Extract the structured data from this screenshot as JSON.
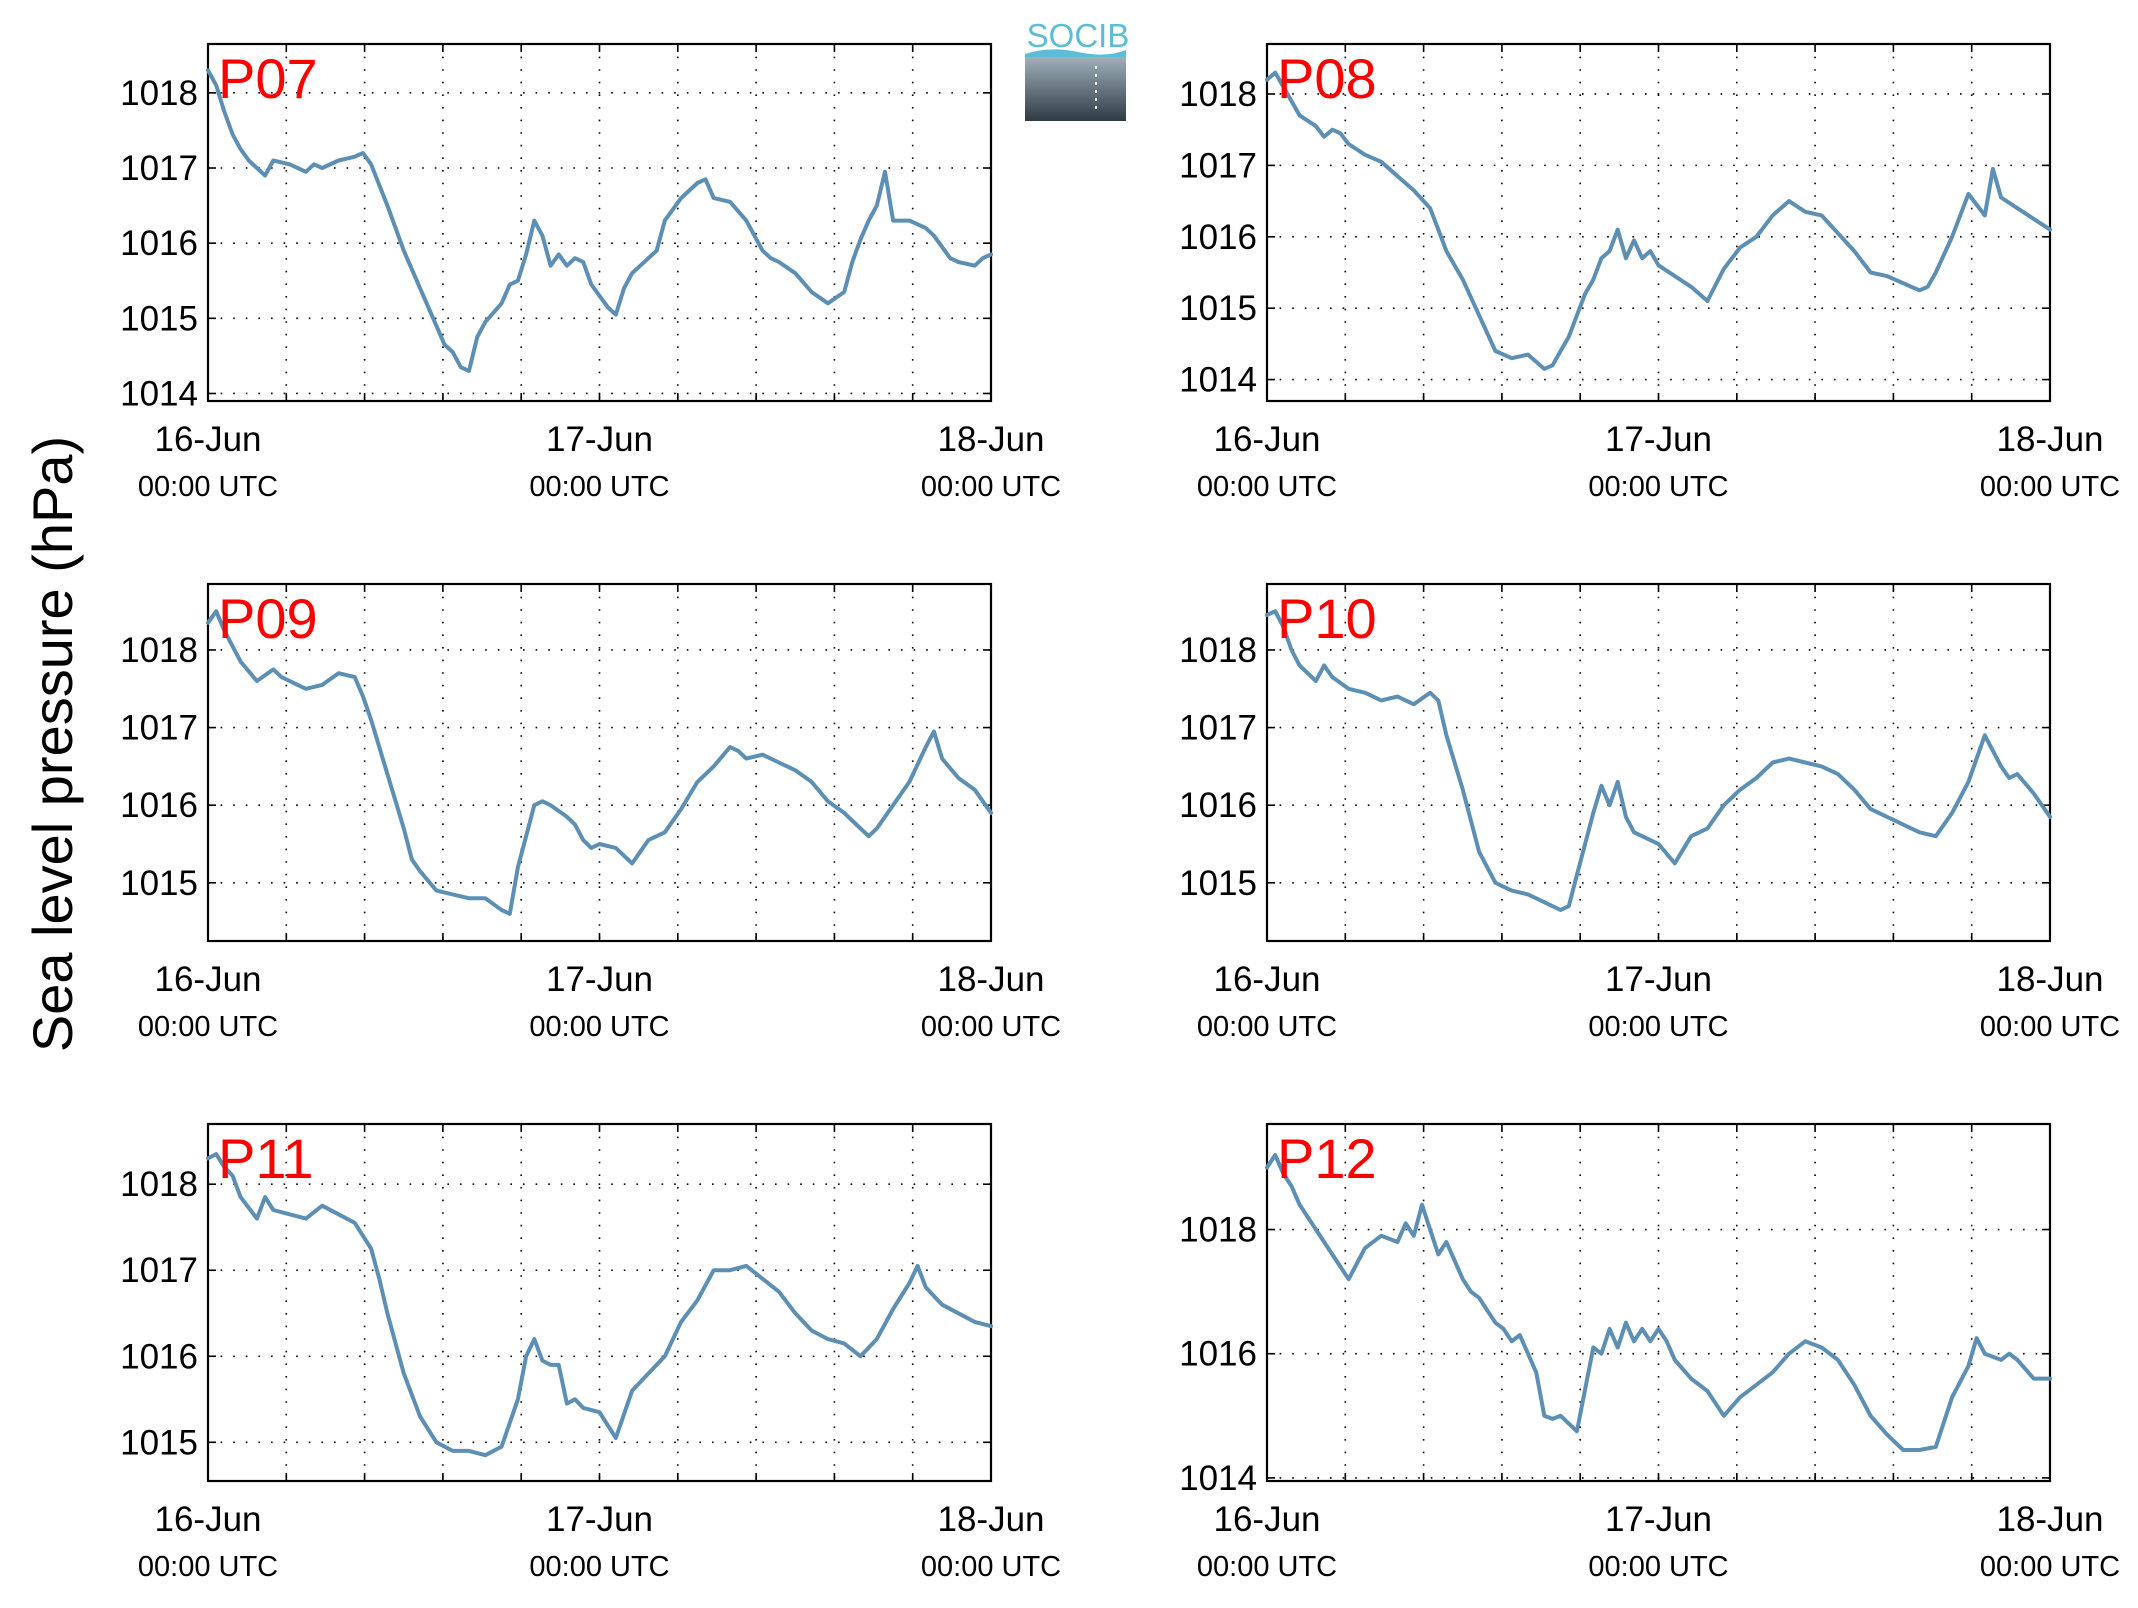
{
  "figure": {
    "ylabel": "Sea level pressure (hPa)",
    "logo_text": "SOCIB",
    "series_color": "#5d8fb5",
    "label_color": "#ff0000"
  },
  "chart_data": [
    {
      "type": "line",
      "label": "P07",
      "x_ticks": [
        {
          "date": "16-Jun",
          "time": "00:00 UTC"
        },
        {
          "date": "17-Jun",
          "time": "00:00 UTC"
        },
        {
          "date": "18-Jun",
          "time": "00:00 UTC"
        }
      ],
      "xlim": [
        0,
        48
      ],
      "ylim": [
        1013.9,
        1018.65
      ],
      "yticks": [
        1014,
        1015,
        1016,
        1017,
        1018
      ],
      "grid": true,
      "series": [
        {
          "x": [
            0,
            0.5,
            1,
            1.5,
            2,
            2.5,
            3,
            3.5,
            4,
            5,
            6,
            6.5,
            7,
            8,
            9,
            9.5,
            10,
            11,
            12,
            13,
            14,
            14.5,
            15,
            15.5,
            16,
            16.5,
            17,
            18,
            18.5,
            19,
            19.5,
            20,
            20.5,
            21,
            21.5,
            22,
            22.5,
            23,
            23.5,
            24,
            24.5,
            25,
            25.5,
            26,
            27,
            27.5,
            28,
            29,
            30,
            30.5,
            31,
            32,
            33,
            34,
            34.5,
            35,
            36,
            37,
            38,
            39,
            39.5,
            40,
            40.5,
            41,
            41.5,
            42,
            43,
            44,
            44.5,
            45,
            45.5,
            46,
            47,
            47.5,
            48
          ],
          "y": [
            1018.3,
            1018.1,
            1017.75,
            1017.45,
            1017.25,
            1017.1,
            1017.0,
            1016.9,
            1017.1,
            1017.05,
            1016.95,
            1017.05,
            1017.0,
            1017.1,
            1017.15,
            1017.2,
            1017.05,
            1016.5,
            1015.9,
            1015.4,
            1014.9,
            1014.65,
            1014.55,
            1014.35,
            1014.3,
            1014.75,
            1014.95,
            1015.2,
            1015.45,
            1015.5,
            1015.85,
            1016.3,
            1016.1,
            1015.7,
            1015.85,
            1015.7,
            1015.8,
            1015.75,
            1015.45,
            1015.3,
            1015.15,
            1015.05,
            1015.4,
            1015.6,
            1015.8,
            1015.9,
            1016.3,
            1016.6,
            1016.8,
            1016.85,
            1016.6,
            1016.55,
            1016.3,
            1015.9,
            1015.8,
            1015.75,
            1015.6,
            1015.35,
            1015.2,
            1015.35,
            1015.75,
            1016.05,
            1016.3,
            1016.5,
            1016.95,
            1016.3,
            1016.3,
            1016.2,
            1016.1,
            1015.95,
            1015.8,
            1015.75,
            1015.7,
            1015.8,
            1015.85
          ]
        }
      ]
    },
    {
      "type": "line",
      "label": "P08",
      "x_ticks": [
        {
          "date": "16-Jun",
          "time": "00:00 UTC"
        },
        {
          "date": "17-Jun",
          "time": "00:00 UTC"
        },
        {
          "date": "18-Jun",
          "time": "00:00 UTC"
        }
      ],
      "xlim": [
        0,
        48
      ],
      "ylim": [
        1013.7,
        1018.7
      ],
      "yticks": [
        1014,
        1015,
        1016,
        1017,
        1018
      ],
      "grid": true,
      "series": [
        {
          "x": [
            0,
            0.5,
            1,
            1.5,
            2,
            3,
            3.5,
            4,
            4.5,
            5,
            6,
            7,
            8,
            9,
            10,
            10.5,
            11,
            12,
            13,
            14,
            14.5,
            15,
            16,
            16.5,
            17,
            17.5,
            18,
            18.5,
            19,
            19.5,
            20,
            20.5,
            21,
            21.5,
            22,
            22.5,
            23,
            23.5,
            24,
            25,
            26,
            26.5,
            27,
            28,
            29,
            30,
            31,
            32,
            33,
            34,
            35,
            36,
            37,
            38,
            39,
            39.5,
            40,
            40.5,
            41,
            42,
            43,
            44,
            44.5,
            45,
            46,
            47,
            48
          ],
          "y": [
            1018.2,
            1018.3,
            1018.1,
            1017.9,
            1017.7,
            1017.55,
            1017.4,
            1017.5,
            1017.45,
            1017.3,
            1017.15,
            1017.05,
            1016.85,
            1016.65,
            1016.4,
            1016.1,
            1015.8,
            1015.4,
            1014.9,
            1014.4,
            1014.35,
            1014.3,
            1014.35,
            1014.25,
            1014.15,
            1014.2,
            1014.4,
            1014.6,
            1014.9,
            1015.2,
            1015.4,
            1015.7,
            1015.8,
            1016.1,
            1015.7,
            1015.95,
            1015.7,
            1015.8,
            1015.6,
            1015.45,
            1015.3,
            1015.2,
            1015.1,
            1015.55,
            1015.85,
            1016.0,
            1016.3,
            1016.5,
            1016.35,
            1016.3,
            1016.05,
            1015.8,
            1015.5,
            1015.45,
            1015.35,
            1015.3,
            1015.25,
            1015.3,
            1015.5,
            1016.0,
            1016.6,
            1016.3,
            1016.95,
            1016.55,
            1016.4,
            1016.25,
            1016.1
          ]
        }
      ]
    },
    {
      "type": "line",
      "label": "P09",
      "x_ticks": [
        {
          "date": "16-Jun",
          "time": "00:00 UTC"
        },
        {
          "date": "17-Jun",
          "time": "00:00 UTC"
        },
        {
          "date": "18-Jun",
          "time": "00:00 UTC"
        }
      ],
      "xlim": [
        0,
        48
      ],
      "ylim": [
        1014.25,
        1018.85
      ],
      "yticks": [
        1015,
        1016,
        1017,
        1018
      ],
      "grid": true,
      "series": [
        {
          "x": [
            0,
            0.5,
            1,
            1.5,
            2,
            3,
            4,
            4.5,
            5,
            5.5,
            6,
            7,
            8,
            9,
            9.5,
            10,
            11,
            12,
            12.5,
            13,
            14,
            15,
            16,
            17,
            18,
            18.5,
            19,
            19.5,
            20,
            20.5,
            21,
            22,
            22.5,
            23,
            23.5,
            24,
            25,
            26,
            27,
            28,
            29,
            30,
            31,
            32,
            32.5,
            33,
            34,
            35,
            36,
            37,
            38,
            39,
            40,
            40.5,
            41,
            42,
            43,
            44,
            44.5,
            45,
            46,
            47,
            48
          ],
          "y": [
            1018.35,
            1018.5,
            1018.25,
            1018.05,
            1017.85,
            1017.6,
            1017.75,
            1017.65,
            1017.6,
            1017.55,
            1017.5,
            1017.55,
            1017.7,
            1017.65,
            1017.4,
            1017.1,
            1016.4,
            1015.7,
            1015.3,
            1015.15,
            1014.9,
            1014.85,
            1014.8,
            1014.8,
            1014.65,
            1014.6,
            1015.2,
            1015.6,
            1016.0,
            1016.05,
            1016.0,
            1015.85,
            1015.75,
            1015.55,
            1015.45,
            1015.5,
            1015.45,
            1015.25,
            1015.55,
            1015.65,
            1015.95,
            1016.3,
            1016.5,
            1016.75,
            1016.7,
            1016.6,
            1016.65,
            1016.55,
            1016.45,
            1016.3,
            1016.05,
            1015.9,
            1015.7,
            1015.6,
            1015.7,
            1016.0,
            1016.3,
            1016.75,
            1016.95,
            1016.6,
            1016.35,
            1016.2,
            1015.9
          ]
        }
      ]
    },
    {
      "type": "line",
      "label": "P10",
      "x_ticks": [
        {
          "date": "16-Jun",
          "time": "00:00 UTC"
        },
        {
          "date": "17-Jun",
          "time": "00:00 UTC"
        },
        {
          "date": "18-Jun",
          "time": "00:00 UTC"
        }
      ],
      "xlim": [
        0,
        48
      ],
      "ylim": [
        1014.25,
        1018.85
      ],
      "yticks": [
        1015,
        1016,
        1017,
        1018
      ],
      "grid": true,
      "series": [
        {
          "x": [
            0,
            0.5,
            1,
            1.5,
            2,
            3,
            3.5,
            4,
            5,
            6,
            7,
            8,
            9,
            10,
            10.5,
            11,
            12,
            13,
            14,
            15,
            16,
            17,
            18,
            18.5,
            19,
            19.5,
            20,
            20.5,
            21,
            21.5,
            22,
            22.5,
            23,
            24,
            25,
            26,
            27,
            28,
            29,
            30,
            31,
            32,
            33,
            34,
            35,
            36,
            37,
            38,
            39,
            40,
            41,
            42,
            43,
            43.5,
            44,
            45,
            45.5,
            46,
            47,
            48
          ],
          "y": [
            1018.45,
            1018.5,
            1018.3,
            1018.0,
            1017.8,
            1017.6,
            1017.8,
            1017.65,
            1017.5,
            1017.45,
            1017.35,
            1017.4,
            1017.3,
            1017.45,
            1017.35,
            1016.9,
            1016.2,
            1015.4,
            1015.0,
            1014.9,
            1014.85,
            1014.75,
            1014.65,
            1014.7,
            1015.1,
            1015.5,
            1015.9,
            1016.25,
            1016.0,
            1016.3,
            1015.85,
            1015.65,
            1015.6,
            1015.5,
            1015.25,
            1015.6,
            1015.7,
            1016.0,
            1016.2,
            1016.35,
            1016.55,
            1016.6,
            1016.55,
            1016.5,
            1016.4,
            1016.2,
            1015.95,
            1015.85,
            1015.75,
            1015.65,
            1015.6,
            1015.9,
            1016.3,
            1016.6,
            1016.9,
            1016.5,
            1016.35,
            1016.4,
            1016.15,
            1015.85
          ]
        }
      ]
    },
    {
      "type": "line",
      "label": "P11",
      "x_ticks": [
        {
          "date": "16-Jun",
          "time": "00:00 UTC"
        },
        {
          "date": "17-Jun",
          "time": "00:00 UTC"
        },
        {
          "date": "18-Jun",
          "time": "00:00 UTC"
        }
      ],
      "xlim": [
        0,
        48
      ],
      "ylim": [
        1014.55,
        1018.7
      ],
      "yticks": [
        1015,
        1016,
        1017,
        1018
      ],
      "grid": true,
      "series": [
        {
          "x": [
            0,
            0.5,
            1,
            1.5,
            2,
            3,
            3.5,
            4,
            5,
            6,
            7,
            8,
            9,
            10,
            10.5,
            11,
            12,
            13,
            14,
            15,
            16,
            17,
            18,
            19,
            19.5,
            20,
            20.5,
            21,
            21.5,
            22,
            22.5,
            23,
            24,
            25,
            26,
            27,
            28,
            29,
            30,
            31,
            32,
            33,
            34,
            35,
            36,
            37,
            38,
            39,
            40,
            41,
            42,
            43,
            43.5,
            44,
            45,
            46,
            47,
            48
          ],
          "y": [
            1018.3,
            1018.35,
            1018.2,
            1018.1,
            1017.85,
            1017.6,
            1017.85,
            1017.7,
            1017.65,
            1017.6,
            1017.75,
            1017.65,
            1017.55,
            1017.25,
            1016.9,
            1016.5,
            1015.8,
            1015.3,
            1015.0,
            1014.9,
            1014.9,
            1014.85,
            1014.95,
            1015.5,
            1016.0,
            1016.2,
            1015.95,
            1015.9,
            1015.9,
            1015.45,
            1015.5,
            1015.4,
            1015.35,
            1015.05,
            1015.6,
            1015.8,
            1016.0,
            1016.4,
            1016.65,
            1017.0,
            1017.0,
            1017.05,
            1016.9,
            1016.75,
            1016.5,
            1016.3,
            1016.2,
            1016.15,
            1016.0,
            1016.2,
            1016.55,
            1016.85,
            1017.05,
            1016.8,
            1016.6,
            1016.5,
            1016.4,
            1016.35
          ]
        }
      ]
    },
    {
      "type": "line",
      "label": "P12",
      "x_ticks": [
        {
          "date": "16-Jun",
          "time": "00:00 UTC"
        },
        {
          "date": "17-Jun",
          "time": "00:00 UTC"
        },
        {
          "date": "18-Jun",
          "time": "00:00 UTC"
        }
      ],
      "xlim": [
        0,
        48
      ],
      "ylim": [
        1013.95,
        1019.7
      ],
      "yticks": [
        1014,
        1016,
        1018
      ],
      "grid": true,
      "series": [
        {
          "x": [
            0,
            0.5,
            1,
            1.5,
            2,
            3,
            4,
            5,
            6,
            7,
            8,
            8.5,
            9,
            9.5,
            10,
            10.5,
            11,
            11.5,
            12,
            12.5,
            13,
            13.5,
            14,
            14.5,
            15,
            15.5,
            16,
            16.5,
            17,
            17.5,
            18,
            19,
            20,
            20.5,
            21,
            21.5,
            22,
            22.5,
            23,
            23.5,
            24,
            24.5,
            25,
            26,
            27,
            28,
            29,
            30,
            31,
            32,
            33,
            34,
            35,
            36,
            37,
            38,
            39,
            40,
            41,
            42,
            43,
            43.5,
            44,
            45,
            45.5,
            46,
            47,
            48
          ],
          "y": [
            1019.0,
            1019.2,
            1018.9,
            1018.7,
            1018.4,
            1018.0,
            1017.6,
            1017.2,
            1017.7,
            1017.9,
            1017.8,
            1018.1,
            1017.9,
            1018.4,
            1018.0,
            1017.6,
            1017.8,
            1017.5,
            1017.2,
            1017.0,
            1016.9,
            1016.7,
            1016.5,
            1016.4,
            1016.2,
            1016.3,
            1016.0,
            1015.7,
            1015.0,
            1014.95,
            1015.0,
            1014.75,
            1016.1,
            1016.0,
            1016.4,
            1016.1,
            1016.5,
            1016.2,
            1016.4,
            1016.2,
            1016.4,
            1016.2,
            1015.9,
            1015.6,
            1015.4,
            1015.0,
            1015.3,
            1015.5,
            1015.7,
            1016.0,
            1016.2,
            1016.1,
            1015.9,
            1015.5,
            1015.0,
            1014.7,
            1014.45,
            1014.45,
            1014.5,
            1015.3,
            1015.8,
            1016.25,
            1016.0,
            1015.9,
            1016.0,
            1015.9,
            1015.6,
            1015.6
          ]
        }
      ]
    }
  ]
}
